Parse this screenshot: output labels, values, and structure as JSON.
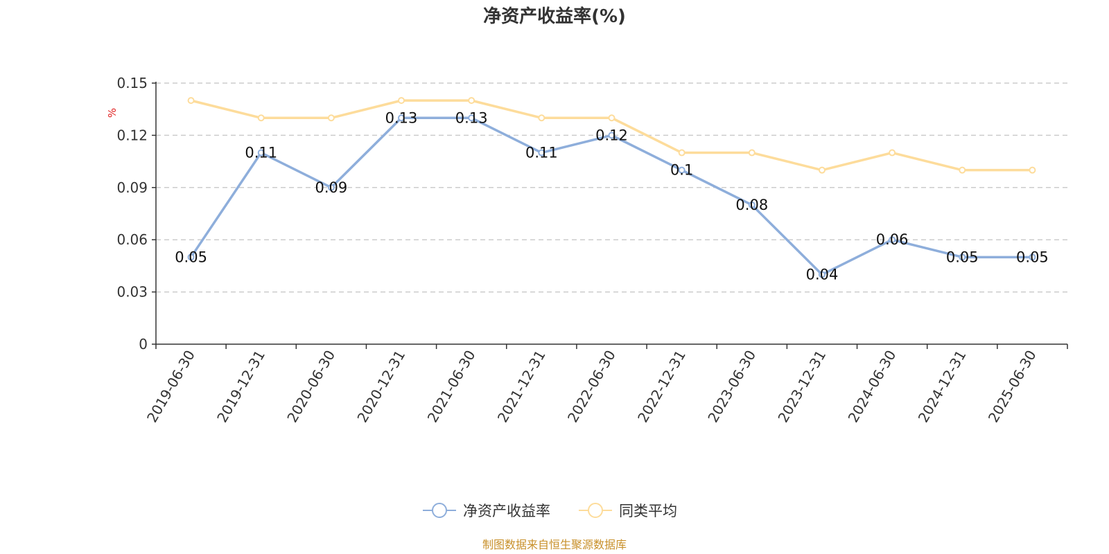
{
  "chart_data": {
    "type": "line",
    "title": "净资产收益率(%)",
    "ylabel": "%",
    "categories": [
      "2019-06-30",
      "2019-12-31",
      "2020-06-30",
      "2020-12-31",
      "2021-06-30",
      "2021-12-31",
      "2022-06-30",
      "2022-12-31",
      "2023-06-30",
      "2023-12-31",
      "2024-06-30",
      "2024-12-31",
      "2025-06-30"
    ],
    "yticks": [
      "0",
      "0.03",
      "0.06",
      "0.09",
      "0.12",
      "0.15"
    ],
    "ylim": [
      0,
      0.15
    ],
    "grid": true,
    "legend_position": "bottom",
    "series": [
      {
        "name": "净资产收益率",
        "color": "#8eaedb",
        "values": [
          0.05,
          0.11,
          0.09,
          0.13,
          0.13,
          0.11,
          0.12,
          0.1,
          0.08,
          0.04,
          0.06,
          0.05,
          0.05
        ],
        "labels": [
          "0.05",
          "0.11",
          "0.09",
          "0.13",
          "0.13",
          "0.11",
          "0.12",
          "0.1",
          "0.08",
          "0.04",
          "0.06",
          "0.05",
          "0.05"
        ]
      },
      {
        "name": "同类平均",
        "color": "#fddc9b",
        "values": [
          0.14,
          0.13,
          0.13,
          0.14,
          0.14,
          0.13,
          0.13,
          0.11,
          0.11,
          0.1,
          0.11,
          0.1,
          0.1
        ]
      }
    ]
  },
  "source": "制图数据来自恒生聚源数据库"
}
